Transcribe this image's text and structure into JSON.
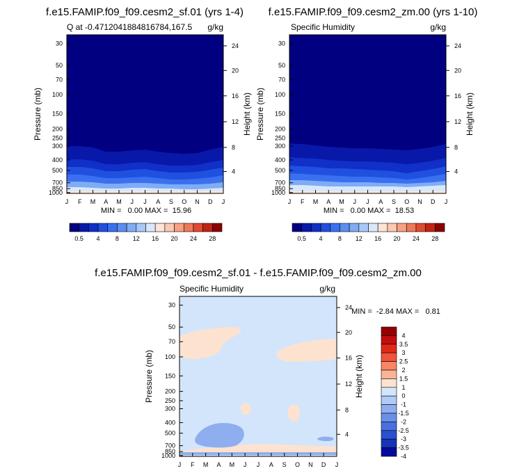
{
  "chart_data": [
    {
      "type": "heatmap",
      "title": "f.e15.FAMIP.f09_f09.cesm2_sf.01 (yrs 1-4)",
      "subtitle_left": "Q at -0.4712041884816784,167.5",
      "subtitle_right": "g/kg",
      "ylabel": "Pressure (mb)",
      "ylabel_right": "Height (km)",
      "x_ticks": [
        "J",
        "F",
        "M",
        "A",
        "M",
        "J",
        "J",
        "A",
        "S",
        "O",
        "N",
        "D",
        "J"
      ],
      "pressure_ticks": [
        "30",
        "50",
        "70",
        "100",
        "150",
        "200",
        "250",
        "300",
        "400",
        "500",
        "700",
        "850",
        "1000"
      ],
      "height_ticks": [
        "24",
        "20",
        "16",
        "12",
        "8",
        "4"
      ],
      "stats": "MIN =   0.00 MAX =  15.96",
      "colorbar_labels": [
        "0.5",
        "4",
        "8",
        "12",
        "16",
        "20",
        "24",
        "28"
      ],
      "contours_y": [
        [
          210,
          210,
          212,
          218,
          218,
          216,
          215,
          218,
          220,
          221,
          220,
          215,
          211
        ],
        [
          229,
          229,
          231,
          236,
          236,
          234,
          233,
          236,
          238,
          238,
          237,
          233,
          230
        ],
        [
          240,
          240,
          242,
          246,
          246,
          244,
          243,
          246,
          248,
          248,
          247,
          244,
          241
        ],
        [
          251,
          251,
          253,
          256,
          256,
          255,
          254,
          256,
          258,
          258,
          257,
          255,
          252
        ],
        [
          261,
          261,
          262,
          264,
          264,
          263,
          263,
          264,
          265,
          265,
          265,
          264,
          262
        ],
        [
          269,
          269,
          270,
          271,
          271,
          270,
          270,
          271,
          271,
          272,
          272,
          271,
          270
        ]
      ]
    },
    {
      "type": "heatmap",
      "title": "f.e15.FAMIP.f09_f09.cesm2_zm.00 (yrs 1-10)",
      "subtitle_left": "Specific Humidity",
      "subtitle_right": "g/kg",
      "ylabel": "Pressure (mb)",
      "ylabel_right": "Height (km)",
      "x_ticks": [
        "J",
        "F",
        "M",
        "A",
        "M",
        "J",
        "J",
        "A",
        "S",
        "O",
        "N",
        "D",
        "J"
      ],
      "pressure_ticks": [
        "30",
        "50",
        "70",
        "100",
        "150",
        "200",
        "250",
        "300",
        "400",
        "500",
        "700",
        "850",
        "1000"
      ],
      "height_ticks": [
        "24",
        "20",
        "16",
        "12",
        "8",
        "4"
      ],
      "stats": "MIN =   0.00 MAX =  18.53",
      "colorbar_labels": [
        "0.5",
        "4",
        "8",
        "12",
        "16",
        "20",
        "24",
        "28"
      ],
      "contours_y": [
        [
          206,
          207,
          209,
          211,
          212,
          213,
          213,
          214,
          215,
          216,
          214,
          211,
          207
        ],
        [
          226,
          227,
          228,
          230,
          231,
          232,
          232,
          233,
          234,
          236,
          234,
          231,
          227
        ],
        [
          238,
          239,
          240,
          242,
          242,
          243,
          244,
          245,
          246,
          249,
          246,
          243,
          239
        ],
        [
          249,
          250,
          251,
          252,
          253,
          254,
          254,
          255,
          256,
          258,
          256,
          253,
          250
        ],
        [
          259,
          259,
          260,
          261,
          262,
          262,
          262,
          263,
          263,
          264,
          263,
          262,
          260
        ],
        [
          266,
          266,
          267,
          268,
          268,
          268,
          268,
          268,
          268,
          269,
          268,
          267,
          266
        ]
      ]
    },
    {
      "type": "heatmap",
      "title": "f.e15.FAMIP.f09_f09.cesm2_sf.01 - f.e15.FAMIP.f09_f09.cesm2_zm.00",
      "subtitle_left": "Specific Humidity",
      "subtitle_right": "g/kg",
      "ylabel": "Pressure (mb)",
      "ylabel_right": "Height (km)",
      "x_ticks": [
        "J",
        "F",
        "M",
        "A",
        "M",
        "J",
        "J",
        "A",
        "S",
        "O",
        "N",
        "D",
        "J"
      ],
      "pressure_ticks": [
        "30",
        "50",
        "70",
        "100",
        "150",
        "200",
        "250",
        "300",
        "400",
        "500",
        "700",
        "850",
        "1000"
      ],
      "height_ticks": [
        "24",
        "20",
        "16",
        "12",
        "8",
        "4"
      ],
      "stats": "MIN =  -2.84 MAX =   0.81",
      "colorbar_labels": [
        "4",
        "3.5",
        "3",
        "2.5",
        "2",
        "1.5",
        "1",
        "0",
        "-1",
        "-1.5",
        "-2",
        "-2.5",
        "-3",
        "-3.5",
        "-4"
      ]
    }
  ],
  "colors": {
    "background_top": "#000080",
    "abs_palette": [
      "#000080",
      "#0818a8",
      "#1030c8",
      "#2050e0",
      "#3a70f0",
      "#5a8ef0",
      "#80acf4",
      "#a8c8f8",
      "#d8e8fc",
      "#fde4d4",
      "#fcc8b0",
      "#f8a084",
      "#f07858",
      "#e04a30",
      "#c02414",
      "#8b0000"
    ],
    "diff_palette": [
      "#960000",
      "#c20d0d",
      "#e02818",
      "#f2543a",
      "#f88566",
      "#fab394",
      "#fde3cf",
      "#d2e5fb",
      "#b0cbf6",
      "#8eaef0",
      "#6a8fe8",
      "#4a70de",
      "#2a4fd0",
      "#1532b8",
      "#050a9c"
    ],
    "diff_background": "#d2e5fb",
    "diff_warm": "#fde3cf",
    "diff_cool": "#8eaef0"
  }
}
